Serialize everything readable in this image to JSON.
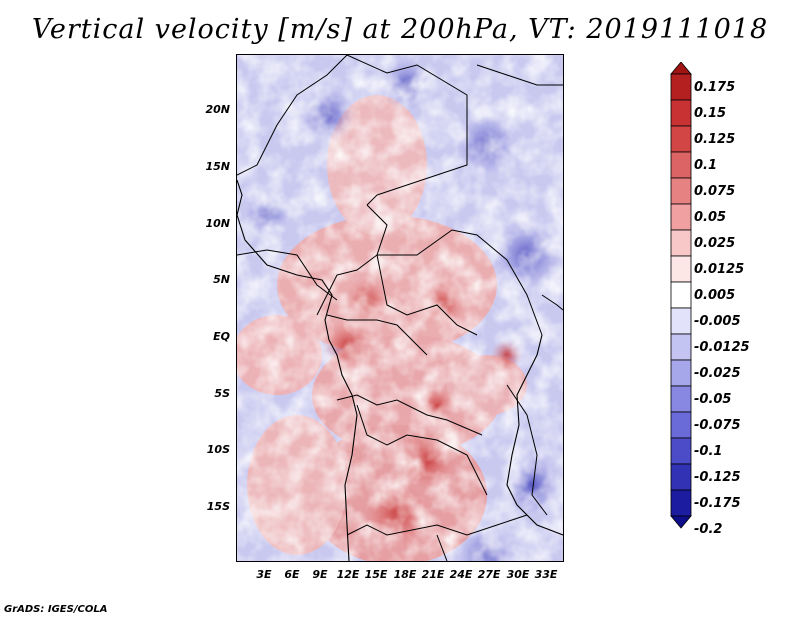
{
  "title": "Vertical velocity [m/s] at 200hPa, VT: 2019111018",
  "footer": "GrADS: IGES/COLA",
  "y_axis": {
    "labels": [
      "20N",
      "15N",
      "10N",
      "5N",
      "EQ",
      "5S",
      "10S",
      "15S"
    ],
    "lat_values": [
      20,
      15,
      10,
      5,
      0,
      -5,
      -10,
      -15
    ],
    "lat_range": [
      -20,
      24.5
    ]
  },
  "x_axis": {
    "labels": [
      "3E",
      "6E",
      "9E",
      "12E",
      "15E",
      "18E",
      "21E",
      "24E",
      "27E",
      "30E",
      "33E"
    ],
    "lon_values": [
      3,
      6,
      9,
      12,
      15,
      18,
      21,
      24,
      27,
      30,
      33
    ],
    "lon_range": [
      0,
      35
    ]
  },
  "colorbar": {
    "labels": [
      "0.175",
      "0.15",
      "0.125",
      "0.1",
      "0.075",
      "0.05",
      "0.025",
      "0.0125",
      "0.005",
      "-0.005",
      "-0.0125",
      "-0.025",
      "-0.05",
      "-0.075",
      "-0.1",
      "-0.125",
      "-0.175",
      "-0.2"
    ],
    "colors": [
      "#a01414",
      "#b42020",
      "#c83232",
      "#d24646",
      "#dc6464",
      "#e68282",
      "#f0a0a0",
      "#f8c8c8",
      "#fde6e6",
      "#ffffff",
      "#e2e2fa",
      "#c4c4f2",
      "#a6a6ea",
      "#8888e2",
      "#6a6ad8",
      "#4c4cc8",
      "#3232b4",
      "#1c1ca0",
      "#0e0e8a"
    ]
  },
  "colors": {
    "positive": "#c83232",
    "negative": "#3232b4",
    "neutral": "#ffffff"
  }
}
